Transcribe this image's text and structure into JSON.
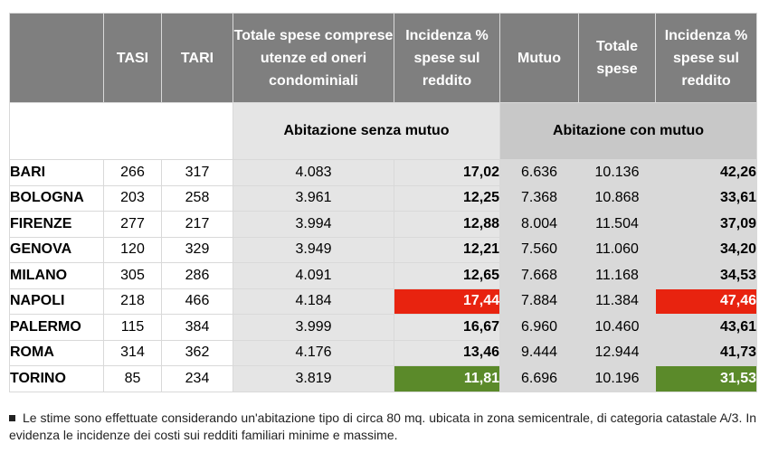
{
  "headers": {
    "tasi": "TASI",
    "tari": "TARI",
    "totale_spese_utenze": "Totale spese comprese utenze ed oneri condominiali",
    "incidenza1": "Incidenza % spese sul reddito",
    "mutuo": "Mutuo",
    "totale_spese": "Totale spese",
    "incidenza2": "Incidenza % spese sul reddito"
  },
  "groups": {
    "senza_mutuo": "Abitazione senza mutuo",
    "con_mutuo": "Abitazione con mutuo"
  },
  "rows": [
    {
      "city": "BARI",
      "tasi": "266",
      "tari": "317",
      "totale": "4.083",
      "inc1": "17,02",
      "mutuo": "6.636",
      "totale_spese": "10.136",
      "inc2": "42,26"
    },
    {
      "city": "BOLOGNA",
      "tasi": "203",
      "tari": "258",
      "totale": "3.961",
      "inc1": "12,25",
      "mutuo": "7.368",
      "totale_spese": "10.868",
      "inc2": "33,61"
    },
    {
      "city": "FIRENZE",
      "tasi": "277",
      "tari": "217",
      "totale": "3.994",
      "inc1": "12,88",
      "mutuo": "8.004",
      "totale_spese": "11.504",
      "inc2": "37,09"
    },
    {
      "city": "GENOVA",
      "tasi": "120",
      "tari": "329",
      "totale": "3.949",
      "inc1": "12,21",
      "mutuo": "7.560",
      "totale_spese": "11.060",
      "inc2": "34,20"
    },
    {
      "city": "MILANO",
      "tasi": "305",
      "tari": "286",
      "totale": "4.091",
      "inc1": "12,65",
      "mutuo": "7.668",
      "totale_spese": "11.168",
      "inc2": "34,53"
    },
    {
      "city": "NAPOLI",
      "tasi": "218",
      "tari": "466",
      "totale": "4.184",
      "inc1": "17,44",
      "mutuo": "7.884",
      "totale_spese": "11.384",
      "inc2": "47,46",
      "highlight": "max"
    },
    {
      "city": "PALERMO",
      "tasi": "115",
      "tari": "384",
      "totale": "3.999",
      "inc1": "16,67",
      "mutuo": "6.960",
      "totale_spese": "10.460",
      "inc2": "43,61"
    },
    {
      "city": "ROMA",
      "tasi": "314",
      "tari": "362",
      "totale": "4.176",
      "inc1": "13,46",
      "mutuo": "9.444",
      "totale_spese": "12.944",
      "inc2": "41,73"
    },
    {
      "city": "TORINO",
      "tasi": "85",
      "tari": "234",
      "totale": "3.819",
      "inc1": "11,81",
      "mutuo": "6.696",
      "totale_spese": "10.196",
      "inc2": "31,53",
      "highlight": "min"
    }
  ],
  "colors": {
    "max": "#e8230f",
    "min": "#5b8a2a",
    "header": "#7f7f7f"
  },
  "note": "Le stime sono effettuate considerando un'abitazione tipo di circa 80 mq. ubicata in zona semicentrale, di categoria catastale A/3. In evidenza le incidenze dei costi sui redditi familiari minime e massime."
}
